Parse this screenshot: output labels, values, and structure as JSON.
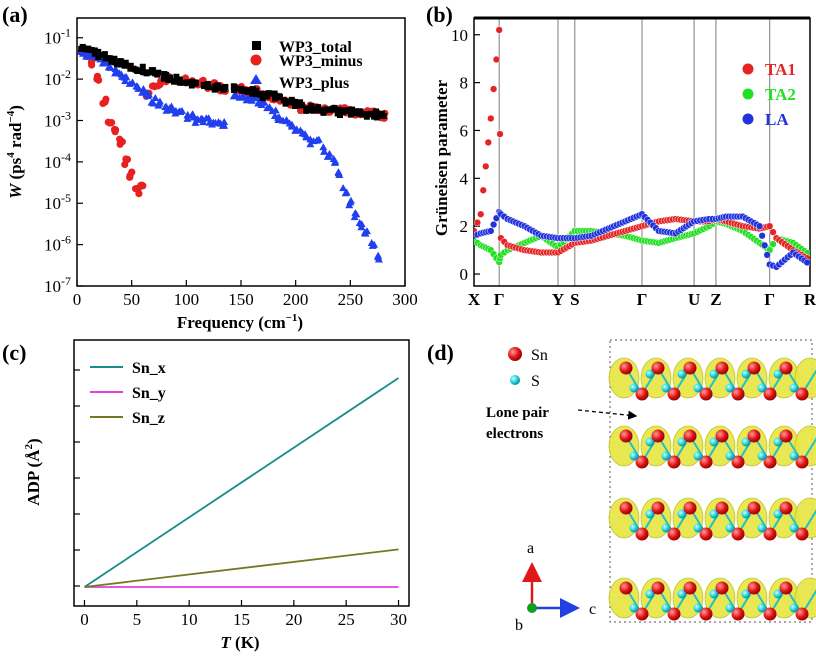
{
  "panels": {
    "a": {
      "letter": "(a)",
      "legend": [
        "WP3_total",
        "WP3_minus",
        "WP3_plus"
      ]
    },
    "b": {
      "letter": "(b)",
      "legend": [
        "TA1",
        "TA2",
        "LA"
      ]
    },
    "c": {
      "letter": "(c)",
      "legend": [
        "Sn_x",
        "Sn_y",
        "Sn_z"
      ]
    },
    "d": {
      "letter": "(d)",
      "atoms": [
        "Sn",
        "S"
      ],
      "annotation_line1": "Lone pair",
      "annotation_line2": "electrons",
      "axes": [
        "a",
        "b",
        "c"
      ]
    }
  },
  "colors": {
    "total": "#000000",
    "minus": "#e82020",
    "plus": "#2040f0",
    "TA1": "#e52424",
    "TA2": "#22e022",
    "LA": "#2233dd",
    "Sn_x": "#1a8a8a",
    "Sn_y": "#e040e0",
    "Sn_z": "#777722",
    "isosurface": "#e6e640",
    "Sn_atom": "#e01818",
    "S_atom": "#20d0d8"
  },
  "chart_data": [
    {
      "id": "a",
      "type": "scatter",
      "title": "",
      "xlabel": "Frequency (cm−1)",
      "ylabel": "W (ps4 rad−4)",
      "xlim": [
        0,
        300
      ],
      "ylim": [
        1e-07,
        0.3
      ],
      "yscale": "log",
      "xticks": [
        "0",
        "50",
        "100",
        "150",
        "200",
        "250",
        "300"
      ],
      "yticks": [
        "10-1",
        "10-2",
        "10-3",
        "10-4",
        "10-5",
        "10-6",
        "10-7"
      ],
      "legend_position": "top-right",
      "series": [
        {
          "name": "WP3_total",
          "marker": "square",
          "x": [
            5,
            10,
            15,
            20,
            25,
            30,
            35,
            40,
            45,
            50,
            55,
            60,
            65,
            70,
            75,
            80,
            85,
            90,
            95,
            100,
            105,
            110,
            115,
            120,
            125,
            130,
            135,
            145,
            150,
            155,
            160,
            165,
            170,
            175,
            180,
            185,
            190,
            195,
            200,
            205,
            210,
            215,
            220,
            225,
            230,
            235,
            240,
            245,
            250,
            255,
            260,
            265,
            270,
            275,
            280
          ],
          "y": [
            0.06,
            0.05,
            0.045,
            0.04,
            0.035,
            0.03,
            0.027,
            0.025,
            0.022,
            0.02,
            0.018,
            0.017,
            0.015,
            0.014,
            0.013,
            0.012,
            0.011,
            0.01,
            0.009,
            0.009,
            0.008,
            0.008,
            0.007,
            0.007,
            0.006,
            0.006,
            0.006,
            0.006,
            0.006,
            0.005,
            0.005,
            0.005,
            0.004,
            0.004,
            0.004,
            0.0035,
            0.003,
            0.003,
            0.0025,
            0.0025,
            0.002,
            0.002,
            0.002,
            0.0018,
            0.0018,
            0.0018,
            0.0016,
            0.0016,
            0.0016,
            0.0015,
            0.0015,
            0.0014,
            0.0014,
            0.0014,
            0.0013
          ]
        },
        {
          "name": "WP3_minus",
          "marker": "circle",
          "x": [
            5,
            10,
            15,
            20,
            25,
            30,
            35,
            40,
            45,
            50,
            55,
            60,
            65,
            70,
            75,
            80,
            85,
            90,
            95,
            100,
            105,
            110,
            115,
            120,
            125,
            130,
            135,
            145,
            150,
            155,
            160,
            165,
            170,
            175,
            180,
            185,
            190,
            195,
            200,
            205,
            210,
            215,
            220,
            225,
            230,
            235,
            240,
            245,
            250,
            255,
            260,
            265,
            270,
            275,
            280
          ],
          "y": [
            0.05,
            0.04,
            0.025,
            0.01,
            0.003,
            0.001,
            0.0006,
            0.0003,
            0.0001,
            5e-05,
            2e-05,
            3e-05,
            0.004,
            0.006,
            0.008,
            0.01,
            0.01,
            0.01,
            0.009,
            0.009,
            0.008,
            0.008,
            0.008,
            0.007,
            0.007,
            0.006,
            0.006,
            0.006,
            0.006,
            0.005,
            0.005,
            0.005,
            0.004,
            0.004,
            0.0035,
            0.003,
            0.003,
            0.0025,
            0.0025,
            0.002,
            0.002,
            0.002,
            0.002,
            0.0018,
            0.0018,
            0.002,
            0.0018,
            0.0018,
            0.0018,
            0.0016,
            0.0016,
            0.0015,
            0.0015,
            0.0014,
            0.0013
          ]
        },
        {
          "name": "WP3_plus",
          "marker": "triangle",
          "x": [
            5,
            10,
            15,
            20,
            25,
            30,
            35,
            40,
            45,
            50,
            55,
            60,
            65,
            70,
            75,
            80,
            85,
            90,
            95,
            100,
            105,
            110,
            115,
            120,
            125,
            130,
            135,
            145,
            150,
            155,
            160,
            165,
            170,
            175,
            180,
            185,
            190,
            195,
            200,
            205,
            210,
            215,
            220,
            225,
            230,
            235,
            240,
            245,
            250,
            255,
            260,
            265,
            270,
            275
          ],
          "y": [
            0.04,
            0.04,
            0.035,
            0.03,
            0.025,
            0.02,
            0.015,
            0.012,
            0.01,
            0.008,
            0.006,
            0.005,
            0.004,
            0.003,
            0.0025,
            0.002,
            0.002,
            0.0015,
            0.0015,
            0.0012,
            0.0012,
            0.001,
            0.001,
            0.001,
            0.0009,
            0.0008,
            0.0008,
            0.004,
            0.004,
            0.0035,
            0.003,
            0.003,
            0.0025,
            0.002,
            0.0015,
            0.0012,
            0.001,
            0.0008,
            0.0006,
            0.0005,
            0.0004,
            0.0003,
            0.0003,
            0.0002,
            0.00015,
            0.0001,
            5e-05,
            2e-05,
            1e-05,
            5e-06,
            3e-06,
            2e-06,
            1e-06,
            5e-07
          ]
        }
      ]
    },
    {
      "id": "b",
      "type": "scatter",
      "title": "",
      "xlabel": "",
      "ylabel": "Grüneisen parameter",
      "ylim": [
        -0.5,
        10.7
      ],
      "yticks": [
        "0",
        "2",
        "4",
        "6",
        "8",
        "10"
      ],
      "kpath_labels": [
        "X",
        "Γ",
        "Y",
        "S",
        "Γ",
        "U",
        "Z",
        "Γ",
        "R"
      ],
      "kpath_positions": [
        0,
        0.075,
        0.25,
        0.3,
        0.5,
        0.655,
        0.72,
        0.88,
        1.0
      ],
      "legend_position": "top-right",
      "series": [
        {
          "name": "TA1",
          "x": [
            0,
            0.02,
            0.05,
            0.075,
            0.08,
            0.1,
            0.15,
            0.2,
            0.25,
            0.3,
            0.35,
            0.4,
            0.45,
            0.5,
            0.55,
            0.6,
            0.655,
            0.7,
            0.72,
            0.75,
            0.8,
            0.85,
            0.88,
            0.9,
            0.95,
            1.0
          ],
          "y": [
            1.8,
            2.5,
            6.5,
            10.2,
            1.5,
            1.2,
            1.0,
            0.9,
            0.9,
            1.3,
            1.4,
            1.6,
            1.8,
            2.0,
            2.2,
            2.3,
            2.2,
            2.2,
            2.3,
            2.2,
            2.0,
            1.9,
            2.0,
            1.5,
            1.0,
            0.6
          ]
        },
        {
          "name": "TA2",
          "x": [
            0,
            0.02,
            0.05,
            0.075,
            0.08,
            0.1,
            0.15,
            0.2,
            0.25,
            0.3,
            0.35,
            0.4,
            0.45,
            0.5,
            0.55,
            0.6,
            0.655,
            0.7,
            0.72,
            0.75,
            0.8,
            0.85,
            0.88,
            0.9,
            0.95,
            1.0
          ],
          "y": [
            1.4,
            1.2,
            1.0,
            0.5,
            0.8,
            1.0,
            1.3,
            1.6,
            1.1,
            1.8,
            1.8,
            1.7,
            1.6,
            1.4,
            1.3,
            1.5,
            1.7,
            2.0,
            2.2,
            2.1,
            1.8,
            1.3,
            1.0,
            1.5,
            1.3,
            0.8
          ]
        },
        {
          "name": "LA",
          "x": [
            0,
            0.02,
            0.05,
            0.075,
            0.08,
            0.1,
            0.15,
            0.2,
            0.25,
            0.3,
            0.35,
            0.4,
            0.45,
            0.5,
            0.55,
            0.6,
            0.655,
            0.7,
            0.72,
            0.75,
            0.8,
            0.85,
            0.88,
            0.9,
            0.95,
            1.0
          ],
          "y": [
            1.6,
            1.7,
            1.8,
            2.6,
            2.5,
            2.3,
            2.0,
            1.6,
            1.5,
            1.5,
            1.6,
            1.9,
            2.2,
            2.5,
            1.8,
            1.7,
            2.2,
            2.3,
            2.3,
            2.4,
            2.4,
            2.0,
            0.4,
            0.3,
            0.9,
            0.4
          ]
        }
      ]
    },
    {
      "id": "c",
      "type": "line",
      "title": "",
      "xlabel": "T (K)",
      "ylabel": "ADP (Å2)",
      "xlim": [
        -1,
        31
      ],
      "xticks": [
        "0",
        "5",
        "10",
        "15",
        "20",
        "25",
        "30"
      ],
      "legend_position": "top-left",
      "series": [
        {
          "name": "Sn_x",
          "x": [
            0,
            30
          ],
          "y": [
            0,
            1.0
          ]
        },
        {
          "name": "Sn_y",
          "x": [
            0,
            30
          ],
          "y": [
            0,
            0
          ]
        },
        {
          "name": "Sn_z",
          "x": [
            0,
            30
          ],
          "y": [
            0,
            0.18
          ]
        }
      ]
    }
  ]
}
